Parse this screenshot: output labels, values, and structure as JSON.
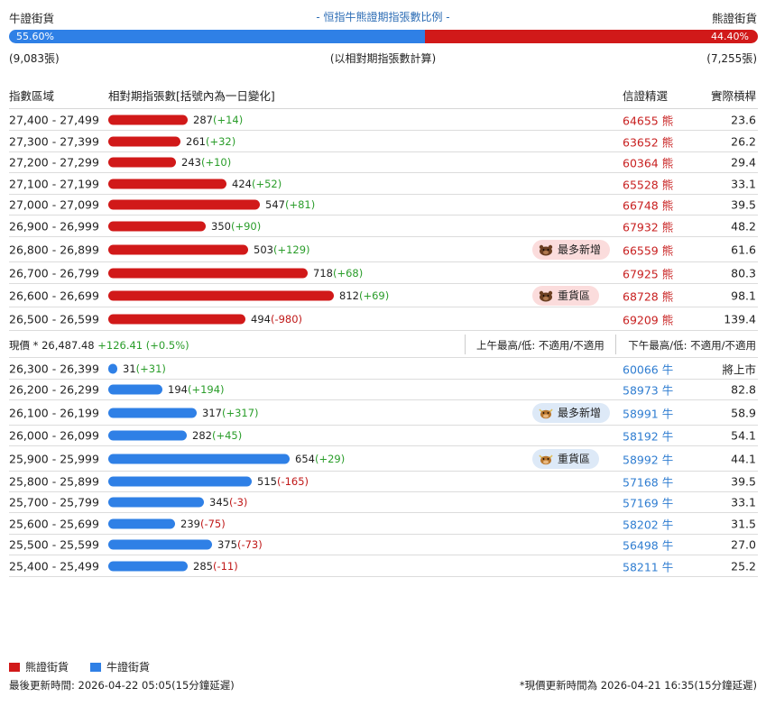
{
  "header": {
    "bull_label": "牛證街貨",
    "title": "- 恒指牛熊證期指張數比例 -",
    "bear_label": "熊證街貨",
    "bull_pct": "55.60%",
    "bear_pct": "44.40%",
    "bull_pct_value": 55.6,
    "bull_count": "(9,083張)",
    "note": "(以相對期指張數計算)",
    "bear_count": "(7,255張)"
  },
  "table_header": {
    "range": "指數區域",
    "contracts": "相對期指張數[括號內為一日變化]",
    "pick": "信證精選",
    "leverage": "實際槓桿"
  },
  "bear_rows": [
    {
      "range": "27,400 - 27,499",
      "value": 287,
      "qty": "287",
      "chg": "(+14)",
      "chg_pos": true,
      "code": "64655 熊",
      "lev": "23.6",
      "badge": ""
    },
    {
      "range": "27,300 - 27,399",
      "value": 261,
      "qty": "261",
      "chg": "(+32)",
      "chg_pos": true,
      "code": "63652 熊",
      "lev": "26.2",
      "badge": ""
    },
    {
      "range": "27,200 - 27,299",
      "value": 243,
      "qty": "243",
      "chg": "(+10)",
      "chg_pos": true,
      "code": "60364 熊",
      "lev": "29.4",
      "badge": ""
    },
    {
      "range": "27,100 - 27,199",
      "value": 424,
      "qty": "424",
      "chg": "(+52)",
      "chg_pos": true,
      "code": "65528 熊",
      "lev": "33.1",
      "badge": ""
    },
    {
      "range": "27,000 - 27,099",
      "value": 547,
      "qty": "547",
      "chg": "(+81)",
      "chg_pos": true,
      "code": "66748 熊",
      "lev": "39.5",
      "badge": ""
    },
    {
      "range": "26,900 - 26,999",
      "value": 350,
      "qty": "350",
      "chg": "(+90)",
      "chg_pos": true,
      "code": "67932 熊",
      "lev": "48.2",
      "badge": ""
    },
    {
      "range": "26,800 - 26,899",
      "value": 503,
      "qty": "503",
      "chg": "(+129)",
      "chg_pos": true,
      "code": "66559 熊",
      "lev": "61.6",
      "badge": "最多新增"
    },
    {
      "range": "26,700 - 26,799",
      "value": 718,
      "qty": "718",
      "chg": "(+68)",
      "chg_pos": true,
      "code": "67925 熊",
      "lev": "80.3",
      "badge": ""
    },
    {
      "range": "26,600 - 26,699",
      "value": 812,
      "qty": "812",
      "chg": "(+69)",
      "chg_pos": true,
      "code": "68728 熊",
      "lev": "98.1",
      "badge": "重貨區"
    },
    {
      "range": "26,500 - 26,599",
      "value": 494,
      "qty": "494",
      "chg": "(-980)",
      "chg_pos": false,
      "code": "69209 熊",
      "lev": "139.4",
      "badge": ""
    }
  ],
  "price_row": {
    "label": "現價 * ",
    "price": "26,487.48",
    "change": "+126.41 (+0.5%)",
    "am": "上午最高/低: 不適用/不適用",
    "pm": "下午最高/低: 不適用/不適用"
  },
  "bull_rows": [
    {
      "range": "26,300 - 26,399",
      "value": 31,
      "qty": "31",
      "chg": "(+31)",
      "chg_pos": true,
      "code": "60066 牛",
      "lev": "將上市",
      "badge": ""
    },
    {
      "range": "26,200 - 26,299",
      "value": 194,
      "qty": "194",
      "chg": "(+194)",
      "chg_pos": true,
      "code": "58973 牛",
      "lev": "82.8",
      "badge": ""
    },
    {
      "range": "26,100 - 26,199",
      "value": 317,
      "qty": "317",
      "chg": "(+317)",
      "chg_pos": true,
      "code": "58991 牛",
      "lev": "58.9",
      "badge": "最多新增"
    },
    {
      "range": "26,000 - 26,099",
      "value": 282,
      "qty": "282",
      "chg": "(+45)",
      "chg_pos": true,
      "code": "58192 牛",
      "lev": "54.1",
      "badge": ""
    },
    {
      "range": "25,900 - 25,999",
      "value": 654,
      "qty": "654",
      "chg": "(+29)",
      "chg_pos": true,
      "code": "58992 牛",
      "lev": "44.1",
      "badge": "重貨區"
    },
    {
      "range": "25,800 - 25,899",
      "value": 515,
      "qty": "515",
      "chg": "(-165)",
      "chg_pos": false,
      "code": "57168 牛",
      "lev": "39.5",
      "badge": ""
    },
    {
      "range": "25,700 - 25,799",
      "value": 345,
      "qty": "345",
      "chg": "(-3)",
      "chg_pos": false,
      "code": "57169 牛",
      "lev": "33.1",
      "badge": ""
    },
    {
      "range": "25,600 - 25,699",
      "value": 239,
      "qty": "239",
      "chg": "(-75)",
      "chg_pos": false,
      "code": "58202 牛",
      "lev": "31.5",
      "badge": ""
    },
    {
      "range": "25,500 - 25,599",
      "value": 375,
      "qty": "375",
      "chg": "(-73)",
      "chg_pos": false,
      "code": "56498 牛",
      "lev": "27.0",
      "badge": ""
    },
    {
      "range": "25,400 - 25,499",
      "value": 285,
      "qty": "285",
      "chg": "(-11)",
      "chg_pos": false,
      "code": "58211 牛",
      "lev": "25.2",
      "badge": ""
    }
  ],
  "legend": {
    "bear": "熊證街貨",
    "bull": "牛證街貨"
  },
  "footer": {
    "updated": "最後更新時間: 2026-04-22 05:05(15分鐘延遲)",
    "price_updated": "*現價更新時間為 2026-04-21 16:35(15分鐘延遲)"
  },
  "colors": {
    "bear": "#d11919",
    "bull": "#2f80e6",
    "positive": "#2a9d2a",
    "negative": "#c01818"
  }
}
